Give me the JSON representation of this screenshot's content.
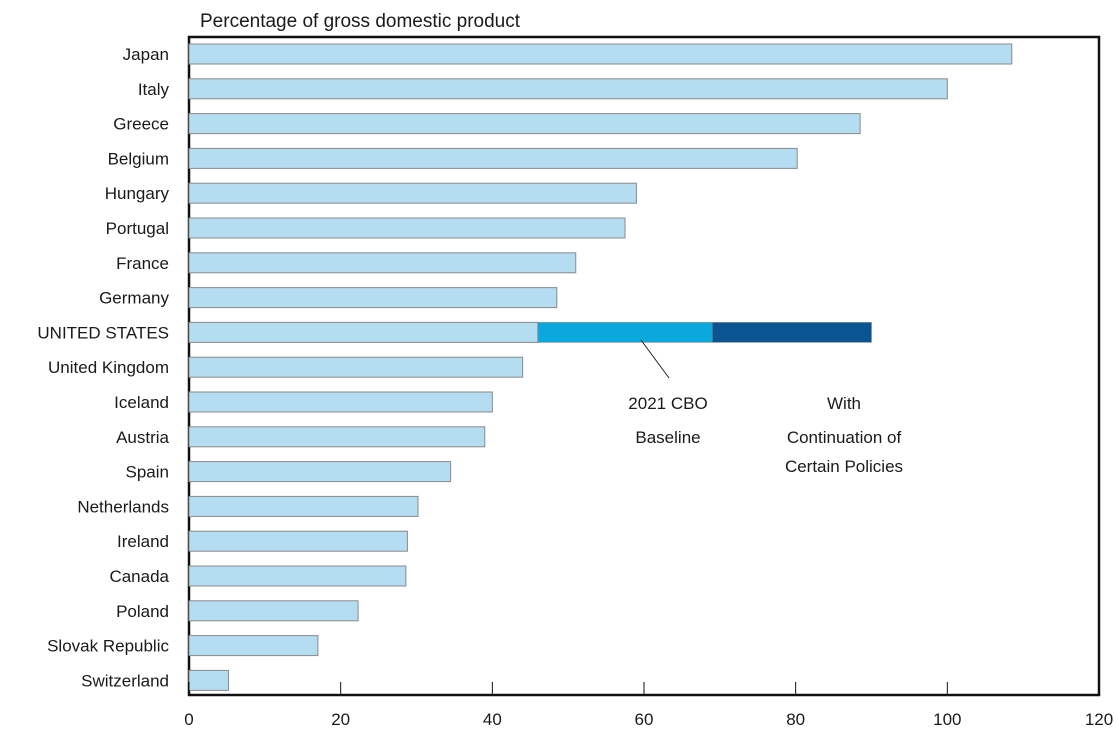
{
  "chart_data": {
    "type": "bar",
    "orientation": "horizontal",
    "title": "Percentage of gross domestic product",
    "xlabel": "",
    "ylabel": "",
    "xlim": [
      0,
      120
    ],
    "xticks": [
      0,
      20,
      40,
      60,
      80,
      100,
      120
    ],
    "grid": false,
    "categories": [
      "Japan",
      "Italy",
      "Greece",
      "Belgium",
      "Hungary",
      "Portugal",
      "France",
      "Germany",
      "UNITED STATES",
      "United Kingdom",
      "Iceland",
      "Austria",
      "Spain",
      "Netherlands",
      "Ireland",
      "Canada",
      "Poland",
      "Slovak Republic",
      "Switzerland"
    ],
    "values": [
      108.5,
      100,
      88.5,
      80.2,
      59,
      57.5,
      51,
      48.5,
      46,
      44,
      40,
      39,
      34.5,
      30.2,
      28.8,
      28.6,
      22.3,
      17,
      5.2
    ],
    "united_states_stack": [
      {
        "name": "2021 CBO Baseline",
        "from": 46,
        "to": 69
      },
      {
        "name": "With Continuation of Certain Policies",
        "from": 69,
        "to": 90
      }
    ],
    "colors": {
      "bar": "#b5ddf1",
      "bar_edge": "#8a8a8a",
      "baseline": "#0aa8dc",
      "continuation": "#0a5591",
      "frame": "#111111"
    },
    "annotations": [
      {
        "lines": [
          "2021 CBO",
          "Baseline"
        ]
      },
      {
        "lines": [
          "With",
          "Continuation of",
          "Certain Policies"
        ]
      }
    ]
  }
}
